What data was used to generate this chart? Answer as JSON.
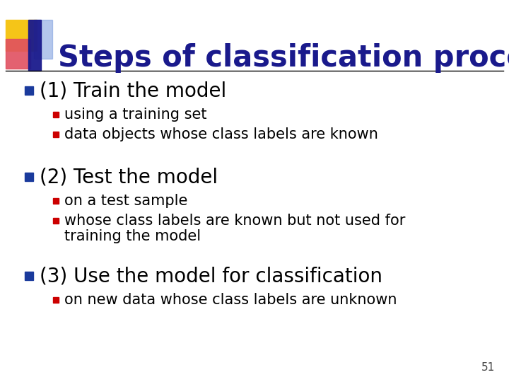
{
  "title": "Steps of classification process",
  "title_color": "#1a1a8c",
  "title_fontsize": 30,
  "background_color": "#ffffff",
  "slide_number": "51",
  "bullet1_text": "(1) Train the model",
  "bullet1_subs": [
    "using a training set",
    "data objects whose class labels are known"
  ],
  "bullet2_text": "(2) Test the model",
  "bullet2_subs_line1": "whose class labels are known but not used for",
  "bullet2_subs_line2": "training the model",
  "bullet2_subs": [
    "on a test sample",
    "whose class labels are known but not used for"
  ],
  "bullet2_sub3": "training the model",
  "bullet3_text": "(3) Use the model for classification",
  "bullet3_subs": [
    "on new data whose class labels are unknown"
  ],
  "main_bullet_color": "#1a3a9c",
  "sub_bullet_color": "#cc0000",
  "main_text_color": "#000000",
  "sub_text_color": "#000000",
  "main_bullet_size": 20,
  "sub_bullet_size": 15,
  "line_color": "#000000",
  "deco_yellow": "#f5c518",
  "deco_red": "#e05060",
  "deco_blue_dark": "#1a1a8c",
  "deco_blue_light": "#7799dd"
}
